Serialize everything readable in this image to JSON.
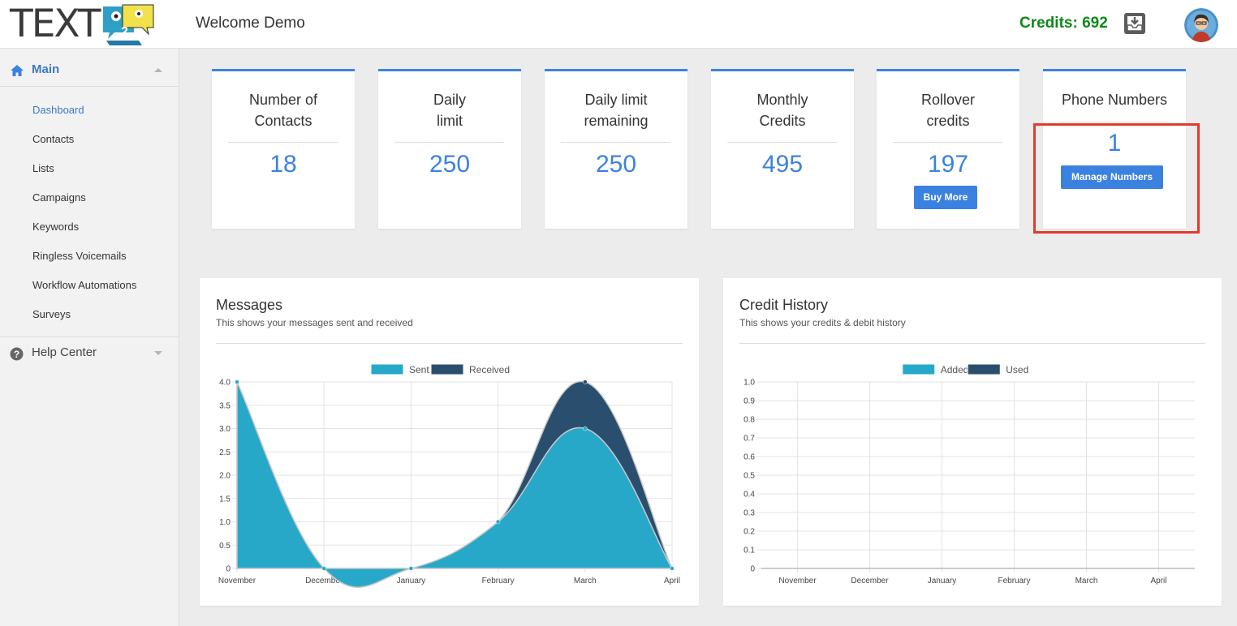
{
  "header": {
    "logo_text": "TEXT",
    "logo_number": "2",
    "welcome": "Welcome Demo",
    "credits": "Credits: 692",
    "credits_color": "#0c8a17",
    "inbox_icon": "download-inbox-icon",
    "avatar_icon": "user-avatar"
  },
  "sidebar": {
    "main_label": "Main",
    "main_icon": "home-icon",
    "items": [
      {
        "label": "Dashboard",
        "active": true
      },
      {
        "label": "Contacts"
      },
      {
        "label": "Lists"
      },
      {
        "label": "Campaigns"
      },
      {
        "label": "Keywords"
      },
      {
        "label": "Ringless Voicemails"
      },
      {
        "label": "Workflow Automations"
      },
      {
        "label": "Surveys"
      }
    ],
    "help_label": "Help Center",
    "help_icon": "question-circle-icon"
  },
  "stats": [
    {
      "title_line1": "Number of",
      "title_line2": "Contacts",
      "value": "18"
    },
    {
      "title_line1": "Daily",
      "title_line2": "limit",
      "value": "250"
    },
    {
      "title_line1": "Daily limit",
      "title_line2": "remaining",
      "value": "250"
    },
    {
      "title_line1": "Monthly",
      "title_line2": "Credits",
      "value": "495"
    },
    {
      "title_line1": "Rollover",
      "title_line2": "credits",
      "value": "197",
      "button": "Buy More"
    },
    {
      "title_line1": "Phone Numbers",
      "title_line2": "",
      "value": "1",
      "button": "Manage Numbers"
    }
  ],
  "accent_color": "#3b82e0",
  "highlight_color": "#e33a2e",
  "messages_panel": {
    "title": "Messages",
    "subtitle": "This shows your messages sent and received"
  },
  "credit_panel": {
    "title": "Credit History",
    "subtitle": "This shows your credits & debit history"
  },
  "chart_data": [
    {
      "type": "area",
      "title": "Messages",
      "categories": [
        "November",
        "December",
        "January",
        "February",
        "March",
        "April"
      ],
      "series": [
        {
          "name": "Sent",
          "values": [
            4,
            0,
            0,
            1,
            3,
            0
          ],
          "color": "#27a8c9"
        },
        {
          "name": "Received",
          "values": [
            0,
            0,
            0,
            0,
            1,
            0
          ],
          "color": "#2a4f6e"
        }
      ],
      "stacked": true,
      "ylim": [
        0,
        4
      ],
      "yticks": [
        "0",
        "0.5",
        "1.0",
        "1.5",
        "2.0",
        "2.5",
        "3.0",
        "3.5",
        "4.0"
      ],
      "grid": true,
      "legend": "top-center"
    },
    {
      "type": "area",
      "title": "Credit History",
      "categories": [
        "November",
        "December",
        "January",
        "February",
        "March",
        "April"
      ],
      "series": [
        {
          "name": "Added",
          "values": [
            0,
            0,
            0,
            0,
            0,
            0
          ],
          "color": "#27a8c9"
        },
        {
          "name": "Used",
          "values": [
            0,
            0,
            0,
            0,
            0,
            0
          ],
          "color": "#2a4f6e"
        }
      ],
      "ylim": [
        0,
        1
      ],
      "yticks": [
        "0",
        "0.1",
        "0.2",
        "0.3",
        "0.4",
        "0.5",
        "0.6",
        "0.7",
        "0.8",
        "0.9",
        "1.0"
      ],
      "grid": true,
      "legend": "top-center"
    }
  ]
}
